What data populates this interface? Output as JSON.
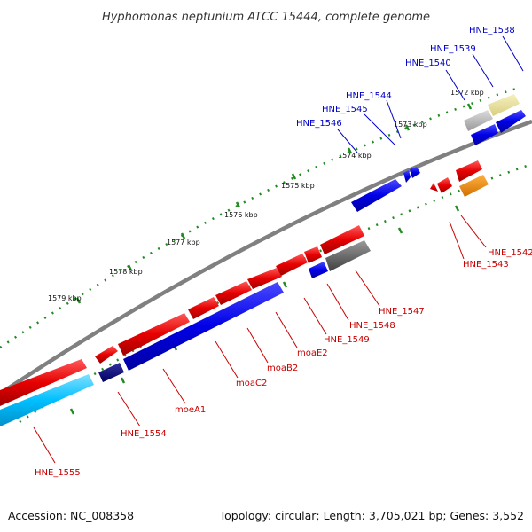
{
  "header": {
    "title": "Hyphomonas neptunium ATCC 15444, complete genome"
  },
  "footer": {
    "accession": "Accession: NC_008358",
    "topology": "Topology: circular; Length: 3,705,021 bp; Genes: 3,552"
  },
  "ticks": [
    "1572 kbp",
    "1573 kbp",
    "1574 kbp",
    "1575 kbp",
    "1576 kbp",
    "1577 kbp",
    "1578 kbp",
    "1579 kbp"
  ],
  "forward_labels": [
    "HNE_1538",
    "HNE_1539",
    "HNE_1540",
    "HNE_1544",
    "HNE_1545",
    "HNE_1546"
  ],
  "reverse_labels": [
    "HNE_1542",
    "HNE_1543",
    "HNE_1547",
    "HNE_1548",
    "HNE_1549",
    "moaE2",
    "moaB2",
    "moaC2",
    "moeA1",
    "HNE_1554",
    "HNE_1555"
  ],
  "colors": {
    "forward_gene": "#0000e6",
    "reverse_gene": "#e60000",
    "backbone": "#808080",
    "tick_dots": "#228b22",
    "label_forward": "#0000c8",
    "label_reverse": "#c80000",
    "cyan_feature": "#00bfff",
    "navy_feature": "#000080",
    "gray_feature": "#606060",
    "orange_feature": "#ff8c00",
    "yellow_feature": "#e8e098"
  }
}
